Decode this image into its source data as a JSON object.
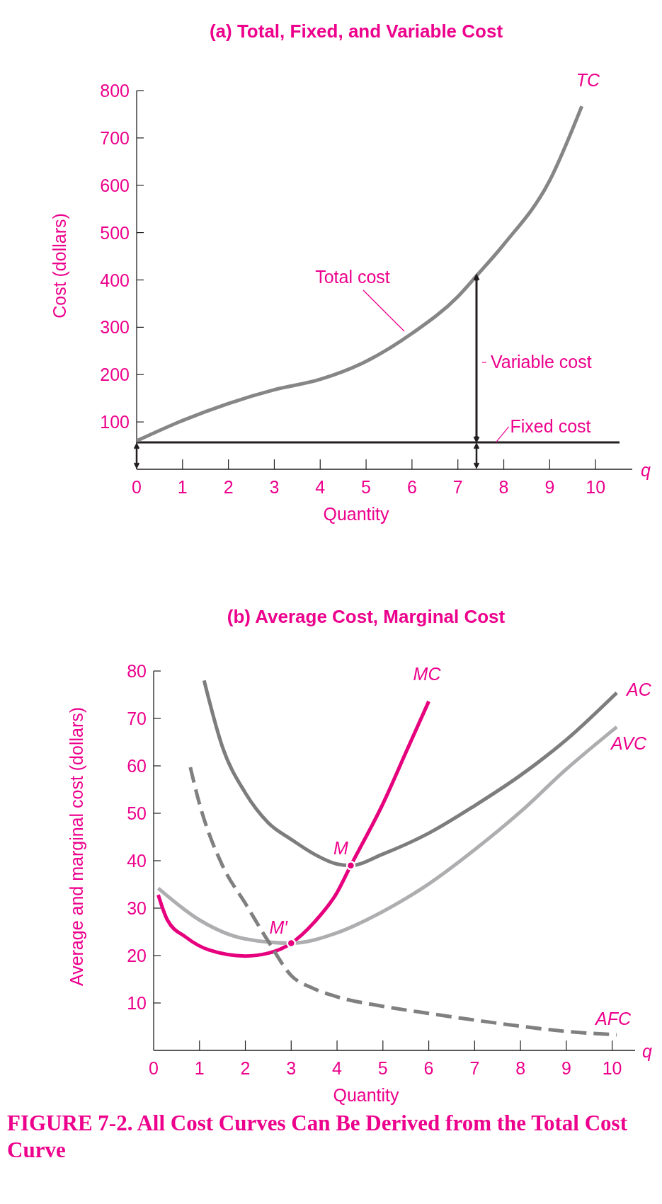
{
  "chart_data": [
    {
      "type": "line",
      "title": "(a) Total, Fixed, and Variable Cost",
      "xlabel": "Quantity",
      "ylabel": "Cost (dollars)",
      "xlim": [
        0,
        10.8
      ],
      "ylim": [
        0,
        800
      ],
      "xticks": [
        0,
        1,
        2,
        3,
        4,
        5,
        6,
        7,
        8,
        9,
        10
      ],
      "yticks": [
        100,
        200,
        300,
        400,
        500,
        600,
        700,
        800
      ],
      "series": [
        {
          "name": "TC",
          "color": "#868686",
          "x": [
            0,
            1,
            2,
            3,
            4,
            5,
            6,
            7,
            7.4,
            8,
            9,
            9.7
          ],
          "values": [
            60,
            103,
            139,
            168,
            190,
            228,
            287,
            365,
            408,
            475,
            610,
            767
          ]
        }
      ],
      "ref_lines": [
        {
          "axis": "y",
          "value": 57,
          "color": "#231f20"
        }
      ],
      "annotations": [
        "Total cost",
        "Variable cost",
        {
          "text": "Fixed cost",
          "x": 7.8,
          "y": 57
        },
        "q"
      ]
    },
    {
      "type": "line",
      "title": "(b) Average Cost, Marginal Cost",
      "xlabel": "Quantity",
      "ylabel": "Average and marginal cost (dollars)",
      "xlim": [
        0,
        10.5
      ],
      "ylim": [
        0,
        80
      ],
      "xticks": [
        0,
        1,
        2,
        3,
        4,
        5,
        6,
        7,
        8,
        9,
        10
      ],
      "yticks": [
        10,
        20,
        30,
        40,
        50,
        60,
        70,
        80
      ],
      "series": [
        {
          "name": "MC",
          "color": "#e6007e",
          "x": [
            0.1,
            0.3,
            0.7,
            1.2,
            2,
            2.5,
            3,
            3.5,
            4,
            4.3,
            5,
            5.5,
            6
          ],
          "values": [
            32.8,
            27.5,
            23.9,
            21.2,
            19.9,
            20.5,
            22.6,
            27,
            33.3,
            39,
            52,
            62.8,
            73.6
          ]
        },
        {
          "name": "AC",
          "color": "#7d7d7d",
          "x": [
            1.1,
            1.5,
            2,
            2.5,
            3,
            3.5,
            4,
            4.3,
            5,
            6,
            7,
            8,
            9,
            10.1
          ],
          "values": [
            78,
            64,
            54.3,
            48,
            44.5,
            41.4,
            39.3,
            39,
            41.4,
            45.8,
            51.6,
            58,
            65.5,
            75.4
          ]
        },
        {
          "name": "AVC",
          "color": "#aeaeb0",
          "x": [
            0.1,
            1,
            2,
            3,
            4,
            5,
            6,
            7,
            8,
            9,
            10.1
          ],
          "values": [
            34.2,
            27.5,
            23.5,
            22.6,
            24.8,
            29.3,
            35.1,
            42.3,
            50.3,
            59.3,
            68.2
          ]
        },
        {
          "name": "AFC",
          "color": "#808080",
          "line_style": "dashed",
          "x": [
            0.8,
            1,
            1.5,
            2,
            2.5,
            3,
            3.5,
            4,
            5,
            6,
            7,
            8,
            9,
            10.1
          ],
          "values": [
            59.7,
            52,
            39,
            31,
            23,
            15.8,
            13,
            11.3,
            9.3,
            7.8,
            6.4,
            5.1,
            4,
            3.3
          ]
        },
        {
          "type": "scatter",
          "marker": "circle",
          "color": "#e6007e",
          "x": [
            3,
            4.3
          ],
          "values": [
            22.6,
            39
          ]
        }
      ],
      "annotations": [
        {
          "text": "M",
          "x": 4.3,
          "y": 39
        },
        {
          "text": "M′",
          "x": 3,
          "y": 22.6
        },
        "q",
        "FIGURE 7-2. All Cost Curves Can Be Derived from the Total Cost Curve"
      ]
    }
  ]
}
